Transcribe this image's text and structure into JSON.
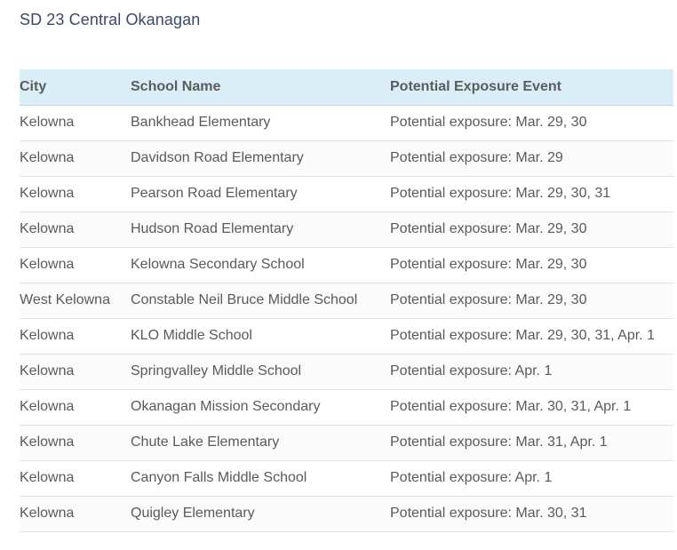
{
  "heading": "SD 23 Central Okanagan",
  "table": {
    "headers": [
      "City",
      "School Name",
      "Potential Exposure Event"
    ],
    "rows": [
      [
        "Kelowna",
        "Bankhead Elementary",
        "Potential exposure: Mar. 29, 30"
      ],
      [
        "Kelowna",
        "Davidson Road Elementary",
        "Potential exposure: Mar. 29"
      ],
      [
        "Kelowna",
        "Pearson Road Elementary",
        "Potential exposure: Mar. 29, 30, 31"
      ],
      [
        "Kelowna",
        "Hudson Road Elementary",
        "Potential exposure: Mar. 29, 30"
      ],
      [
        "Kelowna",
        "Kelowna Secondary School",
        "Potential exposure: Mar. 29, 30"
      ],
      [
        "West Kelowna",
        "Constable Neil Bruce Middle School",
        "Potential exposure: Mar. 29, 30"
      ],
      [
        "Kelowna",
        "KLO Middle School",
        "Potential exposure: Mar. 29, 30, 31, Apr. 1"
      ],
      [
        "Kelowna",
        "Springvalley Middle School",
        "Potential exposure: Apr. 1"
      ],
      [
        "Kelowna",
        "Okanagan Mission Secondary",
        "Potential exposure: Mar. 30, 31, Apr. 1"
      ],
      [
        "Kelowna",
        "Chute Lake Elementary",
        "Potential exposure: Mar. 31, Apr. 1"
      ],
      [
        "Kelowna",
        "Canyon Falls Middle School",
        "Potential exposure: Apr. 1"
      ],
      [
        "Kelowna",
        "Quigley Elementary",
        "Potential exposure: Mar. 30, 31"
      ]
    ]
  }
}
